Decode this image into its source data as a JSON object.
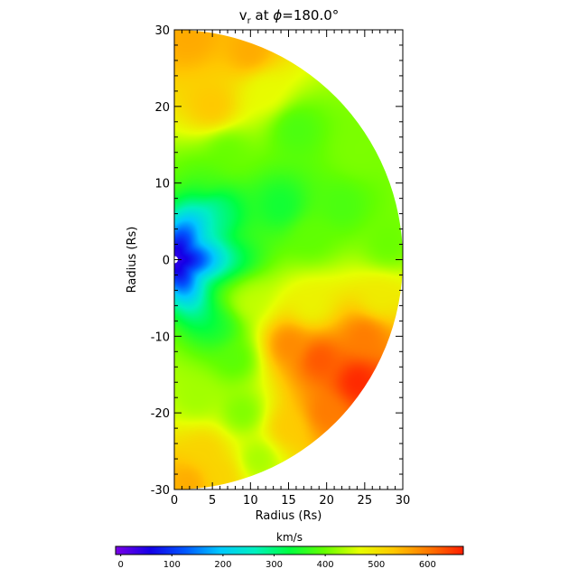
{
  "chart_data": {
    "type": "heatmap",
    "title": {
      "var": "v",
      "sub": "r",
      "mid": " at ",
      "phi": "ϕ",
      "tail": "=180.0°"
    },
    "xlabel": "Radius (Rs)",
    "ylabel": "Radius (Rs)",
    "xlim": [
      0,
      30
    ],
    "ylim": [
      -30,
      30
    ],
    "xticks": [
      0,
      5,
      10,
      15,
      20,
      25,
      30
    ],
    "yticks": [
      -30,
      -20,
      -10,
      0,
      10,
      20,
      30
    ],
    "inner_radius_rs": 0.8,
    "outer_radius_rs": 30,
    "colorbar": {
      "label": "km/s",
      "range": [
        -10,
        670
      ],
      "ticks": [
        0,
        100,
        200,
        300,
        400,
        500,
        600
      ],
      "colormap": [
        "#7a00e6",
        "#1400e6",
        "#0057ff",
        "#00c8ff",
        "#00f0c0",
        "#00ff40",
        "#64ff00",
        "#e6ff00",
        "#ffc800",
        "#ff7800",
        "#ff1e00"
      ]
    },
    "field_centers": [
      {
        "name": "north-polar",
        "x": 2,
        "y": 29,
        "v": 560
      },
      {
        "name": "north-outer",
        "x": 10,
        "y": 27,
        "v": 560
      },
      {
        "name": "north-mid",
        "x": 5,
        "y": 20,
        "v": 535
      },
      {
        "name": "north-upper",
        "x": 12,
        "y": 22,
        "v": 470
      },
      {
        "name": "north-diag-1",
        "x": 7,
        "y": 14,
        "v": 400
      },
      {
        "name": "north-diag-2",
        "x": 16,
        "y": 17,
        "v": 380
      },
      {
        "name": "north-flank",
        "x": 24,
        "y": 14,
        "v": 410
      },
      {
        "name": "north-low",
        "x": 3,
        "y": 10,
        "v": 400
      },
      {
        "name": "upper-streamer-inner",
        "x": 6,
        "y": 6,
        "v": 310
      },
      {
        "name": "upper-streamer-mid",
        "x": 14,
        "y": 7,
        "v": 340
      },
      {
        "name": "upper-streamer-outer",
        "x": 22,
        "y": 7,
        "v": 380
      },
      {
        "name": "equator-outer",
        "x": 28,
        "y": 2,
        "v": 400
      },
      {
        "name": "equator-mid",
        "x": 18,
        "y": 3,
        "v": 395
      },
      {
        "name": "equator-inner",
        "x": 9,
        "y": 1,
        "v": 380
      },
      {
        "name": "lower-band-outer",
        "x": 27,
        "y": -5,
        "v": 490
      },
      {
        "name": "lower-band-mid",
        "x": 18,
        "y": -6,
        "v": 480
      },
      {
        "name": "lower-band-inner",
        "x": 10,
        "y": -5,
        "v": 450
      },
      {
        "name": "lower-streamer",
        "x": 8,
        "y": -13,
        "v": 390
      },
      {
        "name": "lower-streamer-2",
        "x": 6,
        "y": -9,
        "v": 360
      },
      {
        "name": "south-fast-core",
        "x": 24,
        "y": -16,
        "v": 665
      },
      {
        "name": "south-fast-1",
        "x": 19,
        "y": -13,
        "v": 630
      },
      {
        "name": "south-fast-2",
        "x": 15,
        "y": -11,
        "v": 590
      },
      {
        "name": "south-fast-3",
        "x": 20,
        "y": -20,
        "v": 600
      },
      {
        "name": "south-fast-edge",
        "x": 15,
        "y": -22,
        "v": 530
      },
      {
        "name": "south-edge",
        "x": 25,
        "y": -10,
        "v": 600
      },
      {
        "name": "south-diag-1",
        "x": 9,
        "y": -20,
        "v": 410
      },
      {
        "name": "south-diag-2",
        "x": 11,
        "y": -26,
        "v": 430
      },
      {
        "name": "south-low",
        "x": 3,
        "y": -18,
        "v": 430
      },
      {
        "name": "south-polar-1",
        "x": 4,
        "y": -25,
        "v": 520
      },
      {
        "name": "south-polar-2",
        "x": 2,
        "y": -29,
        "v": 560
      },
      {
        "name": "south-polar-3",
        "x": 6,
        "y": -28,
        "v": 520
      }
    ]
  }
}
